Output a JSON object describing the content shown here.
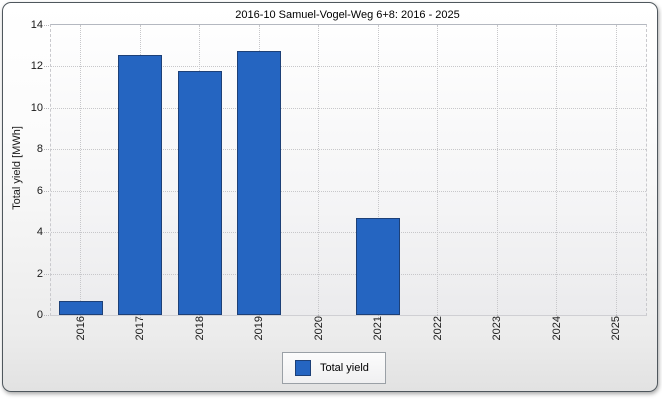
{
  "chart_data": {
    "type": "bar",
    "title": "2016-10 Samuel-Vogel-Weg 6+8: 2016 - 2025",
    "categories": [
      "2016",
      "2017",
      "2018",
      "2019",
      "2020",
      "2021",
      "2022",
      "2023",
      "2024",
      "2025"
    ],
    "series": [
      {
        "name": "Total yield",
        "values": [
          0.7,
          12.55,
          11.8,
          12.75,
          0,
          4.7,
          0,
          0,
          0,
          0
        ],
        "color": "#2565c1",
        "border_color": "#1d4077"
      }
    ],
    "xlabel": "",
    "ylabel": "Total yield [MWh]",
    "ylim": [
      0,
      14
    ],
    "yticks": [
      0,
      2,
      4,
      6,
      8,
      10,
      12,
      14
    ],
    "grid": "dotted",
    "legend": {
      "label": "Total yield",
      "position": "bottom-center"
    }
  },
  "colors": {
    "bar_fill": "#2565c1",
    "bar_border": "#1d4077",
    "grid_line": "#c7c7ca",
    "plot_border": "#b6bac2",
    "window_border": "#4f575d",
    "text": "#1a1a1a"
  }
}
